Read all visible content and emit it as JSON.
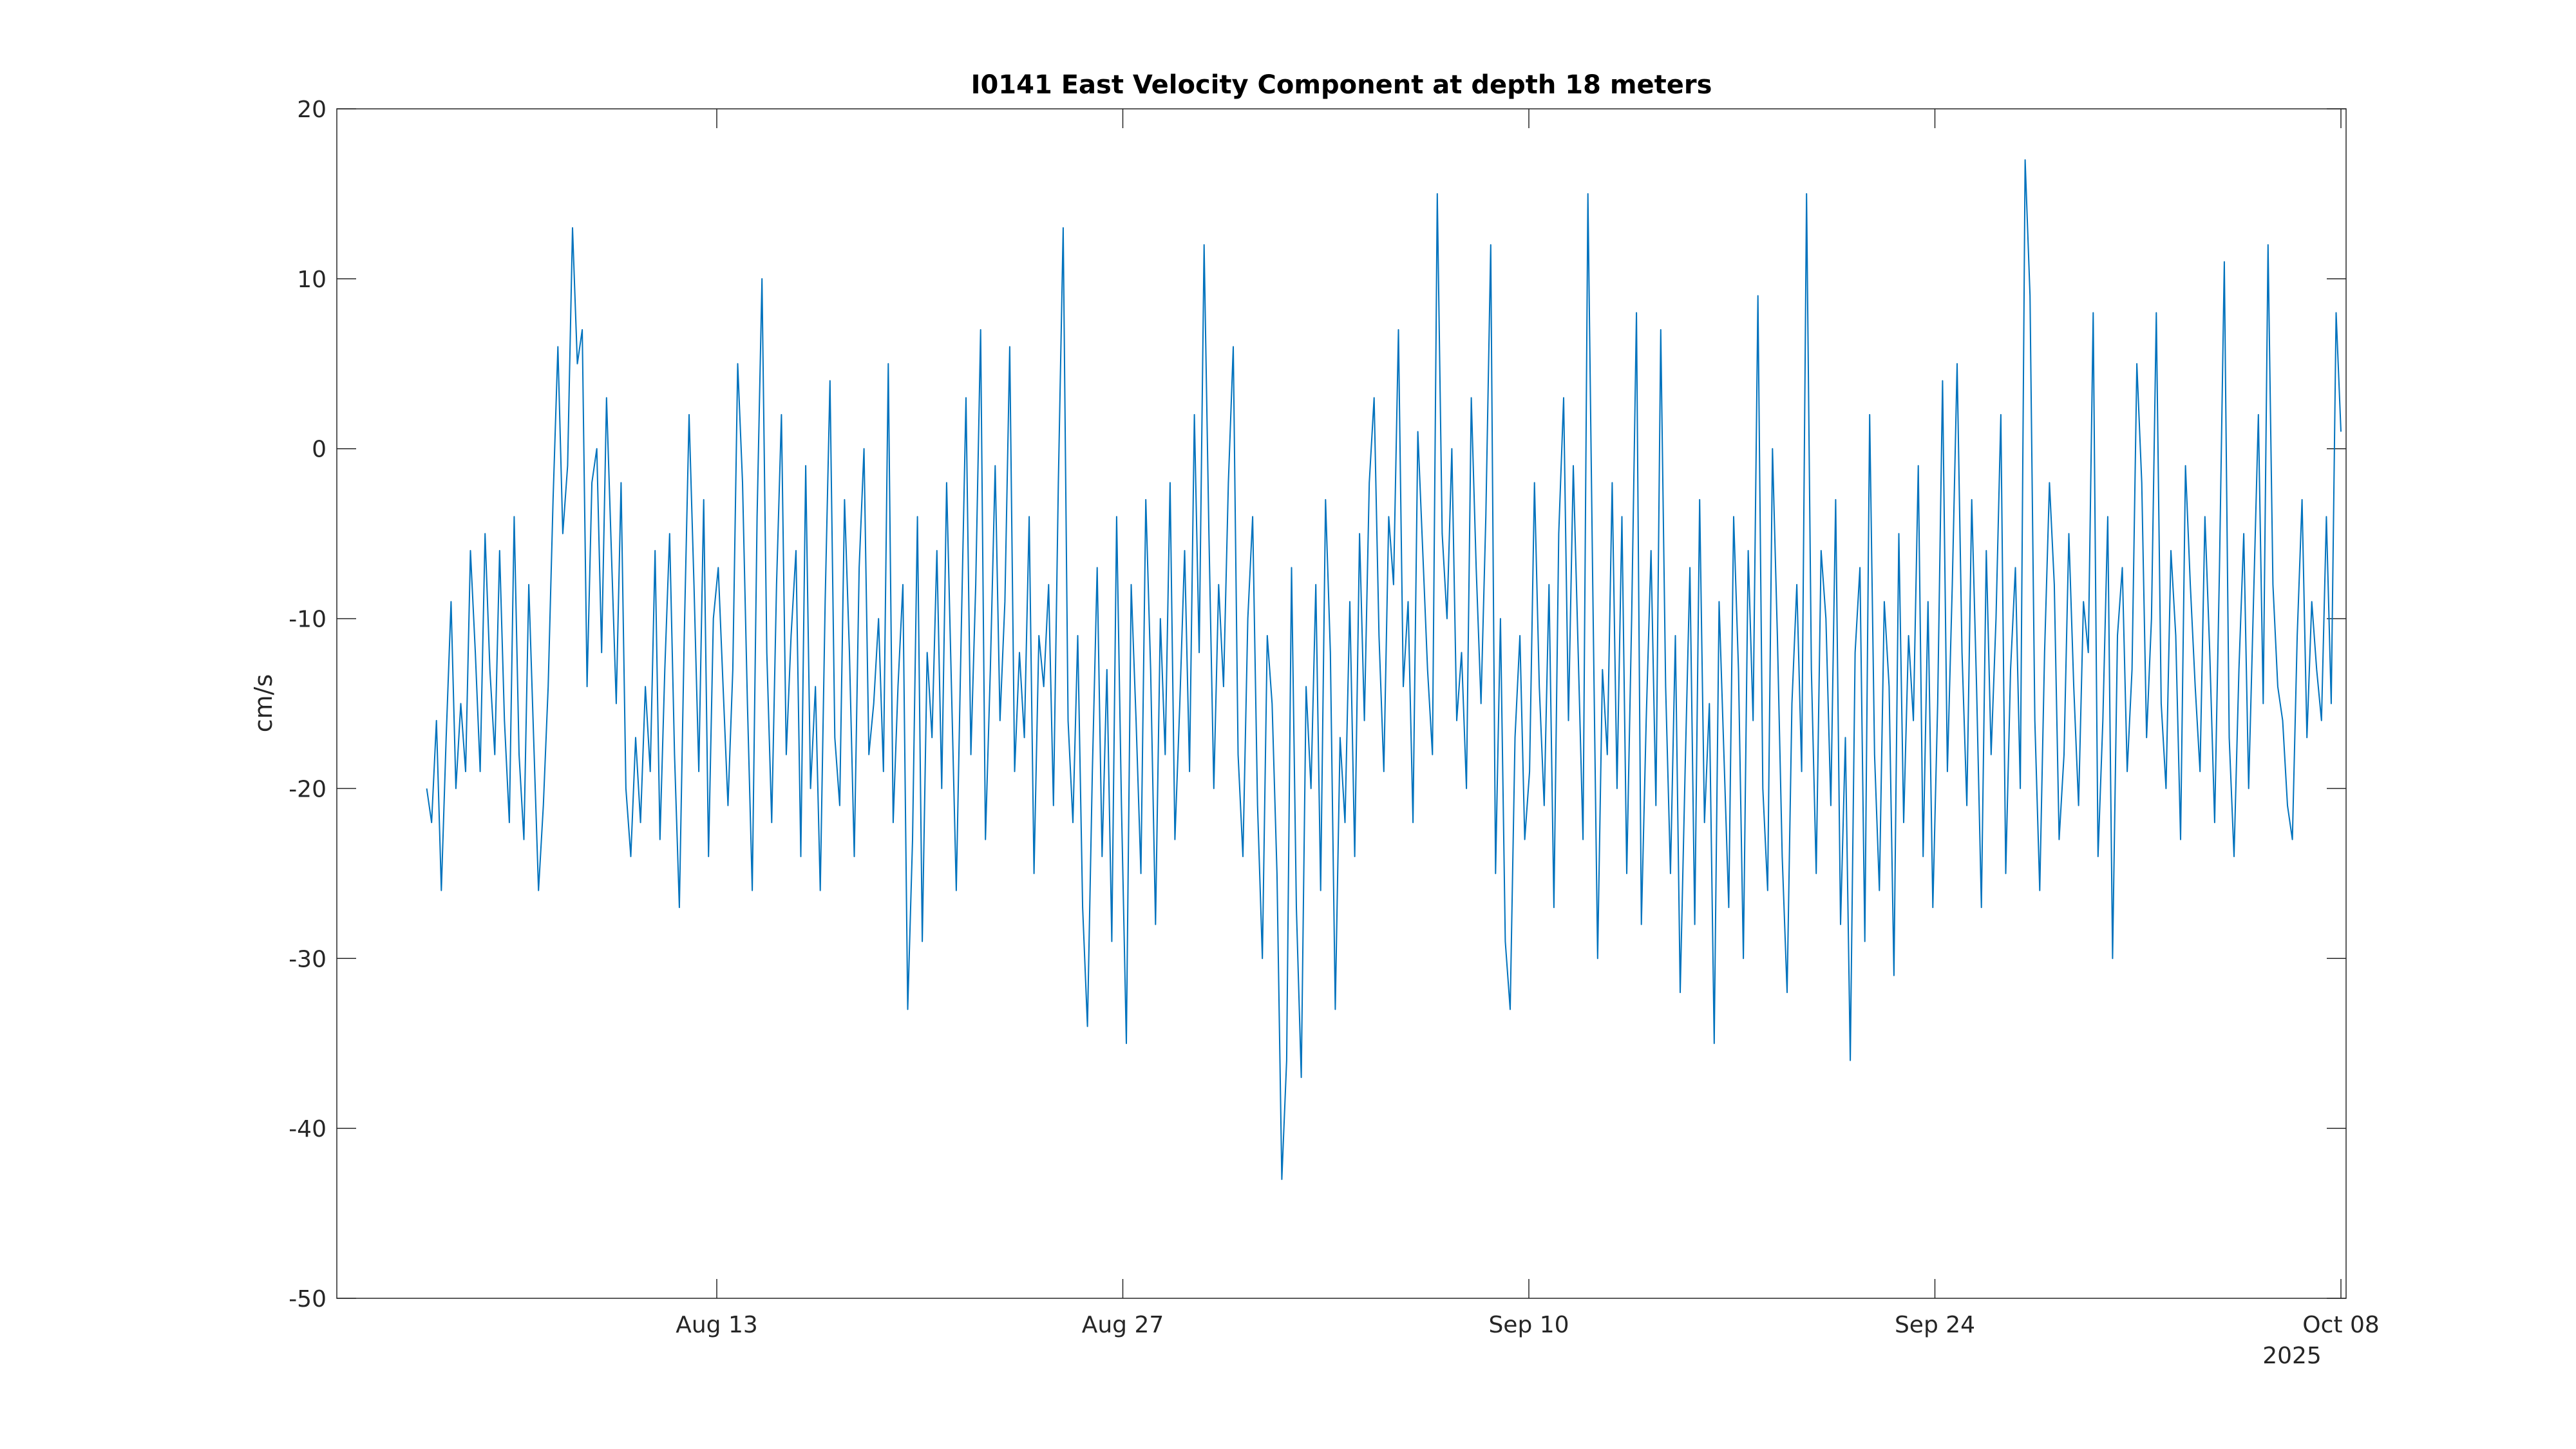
{
  "chart_data": {
    "type": "line",
    "title": "I0141 East Velocity Component at depth 18 meters",
    "xlabel": "",
    "ylabel": "cm/s",
    "x_range": [
      "2025-08-03",
      "2025-10-08"
    ],
    "x_ticks": [
      {
        "date": "2025-08-13",
        "label": "Aug 13"
      },
      {
        "date": "2025-08-27",
        "label": "Aug 27"
      },
      {
        "date": "2025-09-10",
        "label": "Sep 10"
      },
      {
        "date": "2025-09-24",
        "label": "Sep 24"
      },
      {
        "date": "2025-10-08",
        "label": "Oct 08"
      }
    ],
    "x_year_label": "2025",
    "ylim": [
      -50,
      20
    ],
    "y_ticks": [
      20,
      10,
      0,
      -10,
      -20,
      -30,
      -40,
      -50
    ],
    "y_tick_labels": [
      "20",
      "10",
      "0",
      "-10",
      "-20",
      "-30",
      "-40",
      "-50"
    ],
    "grid": false,
    "series": [
      {
        "color": "#0072bd",
        "x_start": "2025-08-03",
        "x_end": "2025-10-08",
        "y": [
          -20,
          -22,
          -16,
          -26,
          -17,
          -9,
          -20,
          -15,
          -19,
          -6,
          -12,
          -19,
          -5,
          -13,
          -18,
          -6,
          -16,
          -22,
          -4,
          -18,
          -23,
          -8,
          -17,
          -26,
          -21,
          -14,
          -3,
          6,
          -5,
          -1,
          13,
          5,
          7,
          -14,
          -2,
          0,
          -12,
          3,
          -6,
          -15,
          -2,
          -20,
          -24,
          -17,
          -22,
          -14,
          -19,
          -6,
          -23,
          -13,
          -5,
          -18,
          -27,
          -11,
          2,
          -8,
          -19,
          -3,
          -24,
          -10,
          -7,
          -14,
          -21,
          -13,
          5,
          -2,
          -15,
          -26,
          -4,
          10,
          -12,
          -22,
          -8,
          2,
          -18,
          -11,
          -6,
          -24,
          -1,
          -20,
          -14,
          -26,
          -9,
          4,
          -17,
          -21,
          -3,
          -12,
          -24,
          -7,
          0,
          -18,
          -15,
          -10,
          -19,
          5,
          -22,
          -14,
          -8,
          -33,
          -23,
          -4,
          -29,
          -12,
          -17,
          -6,
          -20,
          -2,
          -14,
          -26,
          -11,
          3,
          -18,
          -8,
          7,
          -23,
          -13,
          -1,
          -16,
          -9,
          6,
          -19,
          -12,
          -17,
          -4,
          -25,
          -11,
          -14,
          -8,
          -21,
          -2,
          13,
          -16,
          -22,
          -11,
          -27,
          -34,
          -19,
          -7,
          -24,
          -13,
          -29,
          -4,
          -21,
          -35,
          -8,
          -16,
          -25,
          -3,
          -13,
          -28,
          -10,
          -18,
          -2,
          -23,
          -15,
          -6,
          -19,
          2,
          -12,
          12,
          -5,
          -20,
          -8,
          -14,
          -2,
          6,
          -18,
          -24,
          -10,
          -4,
          -21,
          -30,
          -11,
          -15,
          -25,
          -43,
          -36,
          -7,
          -27,
          -37,
          -14,
          -20,
          -8,
          -26,
          -3,
          -12,
          -33,
          -17,
          -22,
          -9,
          -24,
          -5,
          -16,
          -2,
          3,
          -11,
          -19,
          -4,
          -8,
          7,
          -14,
          -9,
          -22,
          1,
          -6,
          -13,
          -18,
          15,
          -5,
          -10,
          0,
          -16,
          -12,
          -20,
          3,
          -7,
          -15,
          -4,
          12,
          -25,
          -10,
          -29,
          -33,
          -17,
          -11,
          -23,
          -19,
          -2,
          -14,
          -21,
          -8,
          -27,
          -5,
          3,
          -16,
          -1,
          -12,
          -23,
          15,
          -8,
          -30,
          -13,
          -18,
          -2,
          -20,
          -4,
          -25,
          -10,
          8,
          -28,
          -16,
          -6,
          -21,
          7,
          -14,
          -25,
          -11,
          -32,
          -19,
          -7,
          -28,
          -3,
          -22,
          -15,
          -35,
          -9,
          -18,
          -27,
          -4,
          -13,
          -30,
          -6,
          -16,
          9,
          -20,
          -26,
          0,
          -11,
          -24,
          -32,
          -15,
          -8,
          -19,
          15,
          -13,
          -25,
          -6,
          -10,
          -21,
          -3,
          -28,
          -17,
          -36,
          -12,
          -7,
          -29,
          2,
          -18,
          -26,
          -9,
          -14,
          -31,
          -5,
          -22,
          -11,
          -16,
          -1,
          -24,
          -9,
          -27,
          -15,
          4,
          -19,
          -8,
          5,
          -12,
          -21,
          -3,
          -14,
          -27,
          -6,
          -18,
          -10,
          2,
          -25,
          -13,
          -7,
          -20,
          17,
          9,
          -16,
          -26,
          -12,
          -2,
          -8,
          -23,
          -18,
          -5,
          -14,
          -21,
          -9,
          -12,
          8,
          -24,
          -16,
          -4,
          -30,
          -11,
          -7,
          -19,
          -13,
          5,
          -2,
          -17,
          -10,
          8,
          -15,
          -20,
          -6,
          -11,
          -23,
          -1,
          -8,
          -14,
          -19,
          -4,
          -12,
          -22,
          -7,
          11,
          -17,
          -24,
          -13,
          -5,
          -20,
          -9,
          2,
          -15,
          12,
          -8,
          -14,
          -16,
          -21,
          -23,
          -11,
          -3,
          -17,
          -9,
          -13,
          -16,
          -4,
          -15,
          8,
          1
        ]
      }
    ]
  }
}
